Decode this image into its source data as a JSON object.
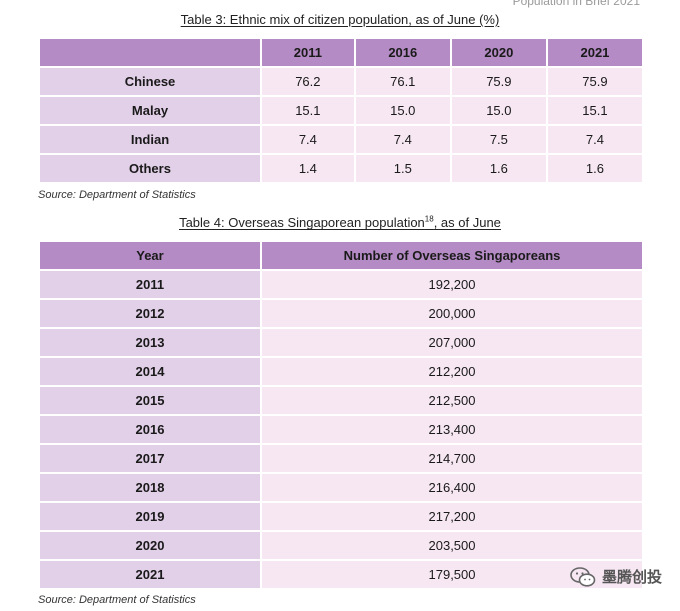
{
  "header_note": "Population in Brief 2021",
  "table3": {
    "title": "Table 3: Ethnic mix of citizen population, as of June (%)",
    "columns": [
      "",
      "2011",
      "2016",
      "2020",
      "2021"
    ],
    "rows": [
      {
        "label": "Chinese",
        "values": [
          "76.2",
          "76.1",
          "75.9",
          "75.9"
        ]
      },
      {
        "label": "Malay",
        "values": [
          "15.1",
          "15.0",
          "15.0",
          "15.1"
        ]
      },
      {
        "label": "Indian",
        "values": [
          "7.4",
          "7.4",
          "7.5",
          "7.4"
        ]
      },
      {
        "label": "Others",
        "values": [
          "1.4",
          "1.5",
          "1.6",
          "1.6"
        ]
      }
    ],
    "source": "Source: Department of Statistics"
  },
  "table4": {
    "title": "Table 4: Overseas Singaporean population",
    "title_superscript": "18",
    "title_suffix": ", as of June",
    "columns": [
      "Year",
      "Number of Overseas Singaporeans"
    ],
    "rows": [
      {
        "year": "2011",
        "value": "192,200"
      },
      {
        "year": "2012",
        "value": "200,000"
      },
      {
        "year": "2013",
        "value": "207,000"
      },
      {
        "year": "2014",
        "value": "212,200"
      },
      {
        "year": "2015",
        "value": "212,500"
      },
      {
        "year": "2016",
        "value": "213,400"
      },
      {
        "year": "2017",
        "value": "214,700"
      },
      {
        "year": "2018",
        "value": "216,400"
      },
      {
        "year": "2019",
        "value": "217,200"
      },
      {
        "year": "2020",
        "value": "203,500"
      },
      {
        "year": "2021",
        "value": "179,500"
      }
    ],
    "source": "Source: Department of Statistics"
  },
  "watermark": {
    "text": "墨腾创投",
    "icon": "wechat-icon"
  }
}
